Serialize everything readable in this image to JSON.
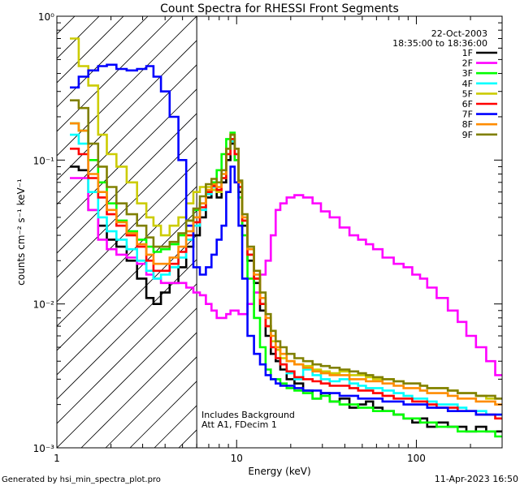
{
  "chart_data": {
    "type": "line",
    "title": "Count Spectra for RHESSI Front Segments",
    "xlabel": "Energy (keV)",
    "ylabel": "counts cm⁻² s⁻¹ keV⁻¹",
    "xscale": "log",
    "yscale": "log",
    "xlim": [
      1,
      300
    ],
    "ylim": [
      0.001,
      1
    ],
    "x_tick_labels": [
      {
        "value": 1,
        "label": "1"
      },
      {
        "value": 10,
        "label": "10"
      },
      {
        "value": 100,
        "label": "100"
      }
    ],
    "y_tick_labels": [
      {
        "value": 1,
        "label": "10⁰"
      },
      {
        "value": 0.1,
        "label": "10⁻¹"
      },
      {
        "value": 0.01,
        "label": "10⁻²"
      },
      {
        "value": 0.001,
        "label": "10⁻³"
      }
    ],
    "date": "22-Oct-2003",
    "time_range": "18:35:00 to 18:36:00",
    "hatched_region_upper_keV": 6,
    "annotations": [
      "Includes Background",
      "Att A1, FDecim 1"
    ],
    "footer_left": "Generated by hsi_min_spectra_plot.pro",
    "footer_right": "11-Apr-2023 16:50",
    "x": [
      1.25,
      1.4,
      1.6,
      1.8,
      2.0,
      2.3,
      2.6,
      3.0,
      3.3,
      3.6,
      4.0,
      4.5,
      5.0,
      5.5,
      6.0,
      6.5,
      7.0,
      7.5,
      8.0,
      8.5,
      9.0,
      9.5,
      10.0,
      10.5,
      11,
      12,
      13,
      14,
      15,
      16,
      17,
      18,
      20,
      22,
      25,
      28,
      31,
      35,
      40,
      45,
      50,
      55,
      60,
      70,
      80,
      90,
      100,
      110,
      120,
      140,
      160,
      180,
      200,
      230,
      260,
      290
    ],
    "series": [
      {
        "name": "1F",
        "color": "#000000",
        "values": [
          0.09,
          0.085,
          0.045,
          0.035,
          0.028,
          0.025,
          0.02,
          0.015,
          0.011,
          0.01,
          0.012,
          0.014,
          0.018,
          0.025,
          0.03,
          0.04,
          0.055,
          0.062,
          0.055,
          0.07,
          0.1,
          0.13,
          0.1,
          0.06,
          0.035,
          0.02,
          0.014,
          0.009,
          0.006,
          0.0045,
          0.004,
          0.0035,
          0.003,
          0.0028,
          0.0025,
          0.0022,
          0.0024,
          0.0021,
          0.0022,
          0.0019,
          0.002,
          0.0021,
          0.0019,
          0.0018,
          0.0017,
          0.0016,
          0.0015,
          0.0016,
          0.0014,
          0.0015,
          0.0014,
          0.0014,
          0.0013,
          0.0014,
          0.0013,
          0.0013
        ]
      },
      {
        "name": "2F",
        "color": "#ff00ff",
        "values": [
          0.075,
          0.075,
          0.045,
          0.028,
          0.024,
          0.022,
          0.021,
          0.019,
          0.016,
          0.015,
          0.014,
          0.014,
          0.014,
          0.013,
          0.012,
          0.0115,
          0.01,
          0.009,
          0.008,
          0.008,
          0.0085,
          0.009,
          0.009,
          0.0085,
          0.0085,
          0.01,
          0.012,
          0.016,
          0.02,
          0.03,
          0.045,
          0.05,
          0.055,
          0.057,
          0.055,
          0.05,
          0.044,
          0.04,
          0.034,
          0.03,
          0.028,
          0.026,
          0.024,
          0.021,
          0.019,
          0.018,
          0.016,
          0.015,
          0.013,
          0.011,
          0.009,
          0.0075,
          0.006,
          0.005,
          0.004,
          0.0032
        ]
      },
      {
        "name": "3F",
        "color": "#00ff00",
        "values": [
          0.18,
          0.16,
          0.1,
          0.07,
          0.05,
          0.038,
          0.032,
          0.028,
          0.025,
          0.023,
          0.024,
          0.026,
          0.03,
          0.038,
          0.045,
          0.05,
          0.06,
          0.07,
          0.085,
          0.11,
          0.14,
          0.155,
          0.1,
          0.055,
          0.03,
          0.015,
          0.008,
          0.005,
          0.0035,
          0.003,
          0.003,
          0.0028,
          0.0026,
          0.0025,
          0.0024,
          0.0022,
          0.0023,
          0.0021,
          0.002,
          0.002,
          0.0019,
          0.0019,
          0.0018,
          0.0018,
          0.0017,
          0.0016,
          0.0016,
          0.0015,
          0.0015,
          0.0014,
          0.0014,
          0.0013,
          0.0013,
          0.0013,
          0.0013,
          0.0012
        ]
      },
      {
        "name": "4F",
        "color": "#00ffff",
        "values": [
          0.15,
          0.13,
          0.06,
          0.04,
          0.032,
          0.028,
          0.024,
          0.02,
          0.017,
          0.015,
          0.016,
          0.018,
          0.021,
          0.028,
          0.035,
          0.045,
          0.058,
          0.065,
          0.06,
          0.075,
          0.11,
          0.135,
          0.11,
          0.065,
          0.038,
          0.022,
          0.015,
          0.01,
          0.007,
          0.005,
          0.0042,
          0.0038,
          0.0033,
          0.003,
          0.0035,
          0.0032,
          0.003,
          0.0029,
          0.003,
          0.0028,
          0.0027,
          0.0026,
          0.0026,
          0.0025,
          0.0024,
          0.0023,
          0.0022,
          0.0022,
          0.0021,
          0.002,
          0.002,
          0.0019,
          0.0018,
          0.0018,
          0.0017,
          0.0017
        ]
      },
      {
        "name": "5F",
        "color": "#cccc00",
        "values": [
          0.7,
          0.45,
          0.33,
          0.15,
          0.11,
          0.09,
          0.07,
          0.05,
          0.04,
          0.035,
          0.03,
          0.035,
          0.04,
          0.05,
          0.06,
          0.065,
          0.065,
          0.062,
          0.06,
          0.075,
          0.11,
          0.14,
          0.11,
          0.065,
          0.038,
          0.022,
          0.015,
          0.01,
          0.007,
          0.0055,
          0.0048,
          0.0042,
          0.004,
          0.0038,
          0.0037,
          0.0035,
          0.0034,
          0.0033,
          0.0034,
          0.0032,
          0.0032,
          0.0031,
          0.003,
          0.003,
          0.0029,
          0.0028,
          0.0028,
          0.0027,
          0.0026,
          0.0026,
          0.0025,
          0.0024,
          0.0024,
          0.0023,
          0.0022,
          0.0022
        ]
      },
      {
        "name": "6F",
        "color": "#ff0000",
        "values": [
          0.12,
          0.11,
          0.075,
          0.055,
          0.042,
          0.035,
          0.03,
          0.025,
          0.02,
          0.017,
          0.017,
          0.019,
          0.023,
          0.03,
          0.037,
          0.047,
          0.06,
          0.066,
          0.062,
          0.075,
          0.11,
          0.14,
          0.11,
          0.065,
          0.038,
          0.022,
          0.015,
          0.01,
          0.007,
          0.005,
          0.0042,
          0.0038,
          0.0034,
          0.0031,
          0.003,
          0.0029,
          0.0028,
          0.0027,
          0.0027,
          0.0026,
          0.0025,
          0.0025,
          0.0024,
          0.0023,
          0.0022,
          0.0022,
          0.0021,
          0.0021,
          0.002,
          0.0019,
          0.0019,
          0.0018,
          0.0018,
          0.0017,
          0.0017,
          0.0016
        ]
      },
      {
        "name": "7F",
        "color": "#0000ff",
        "values": [
          0.32,
          0.38,
          0.42,
          0.45,
          0.46,
          0.43,
          0.42,
          0.43,
          0.45,
          0.38,
          0.3,
          0.2,
          0.1,
          0.035,
          0.018,
          0.016,
          0.018,
          0.022,
          0.028,
          0.035,
          0.06,
          0.09,
          0.07,
          0.035,
          0.015,
          0.006,
          0.0045,
          0.0038,
          0.0032,
          0.003,
          0.0028,
          0.0027,
          0.0027,
          0.0026,
          0.0025,
          0.0025,
          0.0024,
          0.0024,
          0.0023,
          0.0023,
          0.0022,
          0.0022,
          0.0022,
          0.0021,
          0.0021,
          0.002,
          0.002,
          0.002,
          0.0019,
          0.0019,
          0.0018,
          0.0018,
          0.0018,
          0.0017,
          0.0017,
          0.0017
        ]
      },
      {
        "name": "8F",
        "color": "#ff8c00",
        "values": [
          0.18,
          0.16,
          0.08,
          0.06,
          0.045,
          0.037,
          0.031,
          0.026,
          0.022,
          0.019,
          0.019,
          0.021,
          0.025,
          0.032,
          0.04,
          0.05,
          0.062,
          0.068,
          0.065,
          0.08,
          0.12,
          0.15,
          0.12,
          0.07,
          0.04,
          0.024,
          0.016,
          0.011,
          0.008,
          0.006,
          0.005,
          0.0045,
          0.004,
          0.0038,
          0.0036,
          0.0034,
          0.0033,
          0.0032,
          0.0032,
          0.003,
          0.003,
          0.0029,
          0.0029,
          0.0028,
          0.0027,
          0.0026,
          0.0026,
          0.0025,
          0.0024,
          0.0024,
          0.0023,
          0.0022,
          0.0022,
          0.0021,
          0.0021,
          0.002
        ]
      },
      {
        "name": "9F",
        "color": "#808000",
        "values": [
          0.26,
          0.23,
          0.13,
          0.09,
          0.065,
          0.05,
          0.042,
          0.035,
          0.029,
          0.025,
          0.025,
          0.027,
          0.031,
          0.038,
          0.046,
          0.056,
          0.068,
          0.074,
          0.07,
          0.085,
          0.12,
          0.15,
          0.12,
          0.072,
          0.042,
          0.025,
          0.017,
          0.012,
          0.0085,
          0.0065,
          0.0055,
          0.005,
          0.0045,
          0.0042,
          0.004,
          0.0038,
          0.0037,
          0.0036,
          0.0035,
          0.0034,
          0.0033,
          0.0032,
          0.0031,
          0.003,
          0.0029,
          0.0028,
          0.0028,
          0.0027,
          0.0026,
          0.0026,
          0.0025,
          0.0024,
          0.0024,
          0.0023,
          0.0023,
          0.0022
        ]
      }
    ]
  }
}
